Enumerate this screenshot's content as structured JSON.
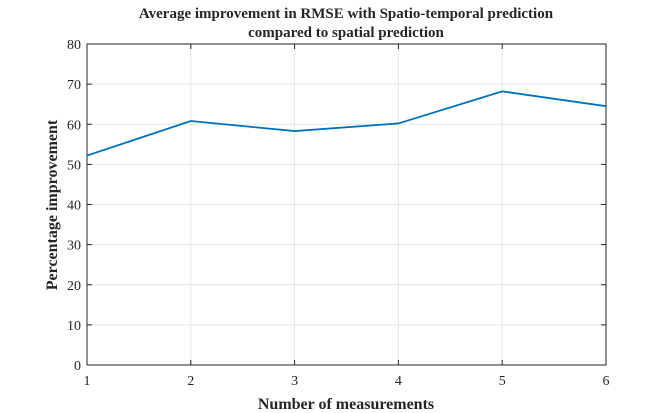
{
  "chart_data": {
    "type": "line",
    "title": [
      "Average improvement in RMSE with Spatio-temporal prediction",
      "compared to spatial prediction"
    ],
    "xlabel": "Number of measurements",
    "ylabel": "Percentage improvement",
    "x": [
      1,
      2,
      3,
      4,
      5,
      6
    ],
    "xlim": [
      1,
      6
    ],
    "ylim": [
      0,
      80
    ],
    "xticks": [
      1,
      2,
      3,
      4,
      5,
      6
    ],
    "yticks": [
      0,
      10,
      20,
      30,
      40,
      50,
      60,
      70,
      80
    ],
    "grid": true,
    "series": [
      {
        "values": [
          52.2,
          60.8,
          58.3,
          60.2,
          68.2,
          64.5
        ],
        "color": "#0072bd"
      }
    ]
  }
}
